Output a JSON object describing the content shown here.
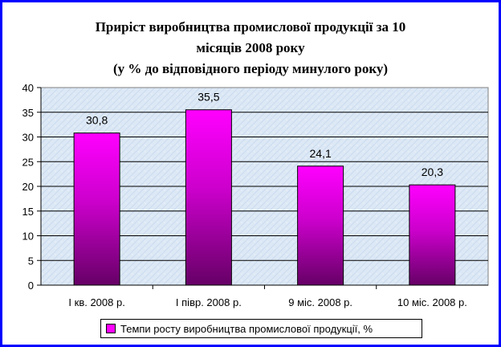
{
  "title": {
    "line1": "Приріст виробництва промислової продукції за 10",
    "line2": "місяців 2008 року",
    "line3": "(у % до відповідного періоду минулого року)"
  },
  "legend": {
    "label": "Темпи росту виробництва промислової продукції, %"
  },
  "colors": {
    "border": "#0000ff",
    "bar_top": "#ff00ff",
    "bar_bottom": "#660066",
    "plot_bg": "#dce8f5"
  },
  "chart_data": {
    "type": "bar",
    "title": "Приріст виробництва промислової продукції за 10 місяців 2008 року (у % до відповідного періоду минулого року)",
    "categories": [
      "І кв. 2008 р.",
      "І півр. 2008 р.",
      "9 міс. 2008 р.",
      "10 міс. 2008 р."
    ],
    "series": [
      {
        "name": "Темпи росту виробництва промислової продукції, %",
        "values": [
          30.8,
          35.5,
          24.1,
          20.3
        ],
        "labels": [
          "30,8",
          "35,5",
          "24,1",
          "20,3"
        ]
      }
    ],
    "yticks": [
      "0",
      "5",
      "10",
      "15",
      "20",
      "25",
      "30",
      "35",
      "40"
    ],
    "ylim": [
      0,
      40
    ],
    "grid": true,
    "legend_position": "bottom"
  }
}
